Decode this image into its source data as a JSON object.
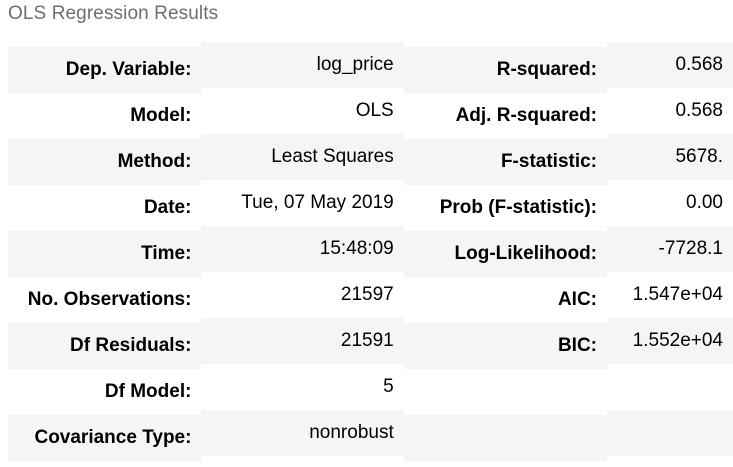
{
  "caption": "OLS Regression Results",
  "rows": [
    {
      "l1": "Dep. Variable:",
      "v1": "log_price",
      "l2": "R-squared:",
      "v2": "0.568"
    },
    {
      "l1": "Model:",
      "v1": "OLS",
      "l2": "Adj. R-squared:",
      "v2": "0.568"
    },
    {
      "l1": "Method:",
      "v1": "Least Squares",
      "l2": "F-statistic:",
      "v2": "5678."
    },
    {
      "l1": "Date:",
      "v1": "Tue, 07 May 2019",
      "l2": "Prob (F-statistic):",
      "v2": "0.00"
    },
    {
      "l1": "Time:",
      "v1": "15:48:09",
      "l2": "Log-Likelihood:",
      "v2": "-7728.1"
    },
    {
      "l1": "No. Observations:",
      "v1": "21597",
      "l2": "AIC:",
      "v2": "1.547e+04"
    },
    {
      "l1": "Df Residuals:",
      "v1": "21591",
      "l2": "BIC:",
      "v2": "1.552e+04"
    },
    {
      "l1": "Df Model:",
      "v1": "5",
      "l2": "",
      "v2": ""
    },
    {
      "l1": "Covariance Type:",
      "v1": "nonrobust",
      "l2": "",
      "v2": ""
    }
  ]
}
